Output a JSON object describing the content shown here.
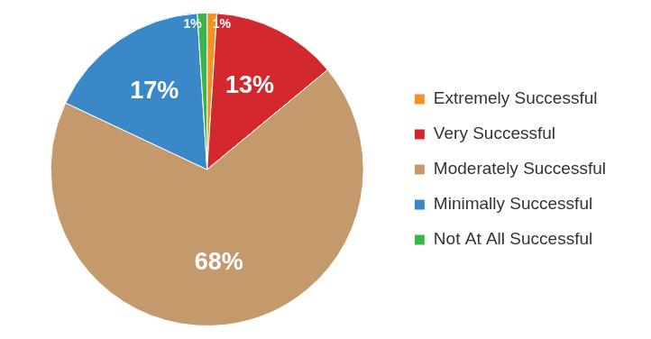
{
  "chart_data": {
    "type": "pie",
    "categories": [
      "Extremely Successful",
      "Very Successful",
      "Moderately Successful",
      "Minimally Successful",
      "Not At All Successful"
    ],
    "values": [
      1,
      13,
      68,
      17,
      1
    ],
    "value_labels": [
      "1%",
      "13%",
      "68%",
      "17%",
      "1%"
    ],
    "colors": [
      "#f39325",
      "#d2282e",
      "#c49a6c",
      "#3a88c8",
      "#39b54a"
    ],
    "legend": "right",
    "data_labels": true
  }
}
